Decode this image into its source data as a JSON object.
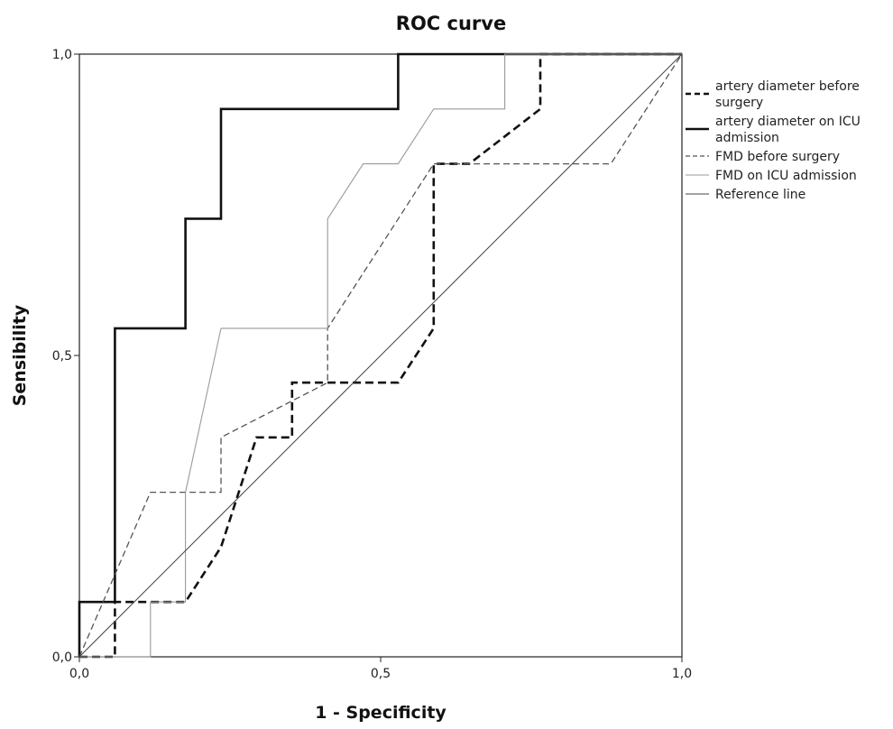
{
  "chart_data": {
    "type": "line",
    "title": "ROC curve",
    "xlabel": "1 - Specificity",
    "ylabel": "Sensibility",
    "xlim": [
      0,
      1
    ],
    "ylim": [
      0,
      1
    ],
    "xticks": [
      0,
      0.5,
      1
    ],
    "yticks": [
      0,
      0.5,
      1
    ],
    "xtick_labels": [
      "0,0",
      "0,5",
      "1,0"
    ],
    "ytick_labels": [
      "0,0",
      "0,5",
      "1,0"
    ],
    "grid": false,
    "legend_position": "right",
    "series": [
      {
        "name": "artery diameter before surgery",
        "legend_lines": [
          "artery diameter before",
          "surgery"
        ],
        "style": "thick-dashed",
        "color": "#111111",
        "x": [
          0,
          0.059,
          0.059,
          0.176,
          0.235,
          0.294,
          0.353,
          0.353,
          0.529,
          0.588,
          0.588,
          0.647,
          0.765,
          0.765,
          1.0
        ],
        "y": [
          0,
          0,
          0.091,
          0.091,
          0.182,
          0.364,
          0.364,
          0.455,
          0.455,
          0.545,
          0.818,
          0.818,
          0.909,
          1.0,
          1.0
        ]
      },
      {
        "name": "artery diameter on ICU admission",
        "legend_lines": [
          "artery diameter on ICU",
          "admission"
        ],
        "style": "thick-solid",
        "color": "#111111",
        "x": [
          0,
          0,
          0.059,
          0.059,
          0.176,
          0.176,
          0.235,
          0.235,
          0.529,
          0.529,
          1.0
        ],
        "y": [
          0,
          0.091,
          0.091,
          0.545,
          0.545,
          0.727,
          0.727,
          0.909,
          0.909,
          1.0,
          1.0
        ]
      },
      {
        "name": "FMD before surgery",
        "legend_lines": [
          "FMD before surgery"
        ],
        "style": "thin-dashed",
        "color": "#555555",
        "x": [
          0,
          0.118,
          0.118,
          0.235,
          0.235,
          0.412,
          0.412,
          0.588,
          0.882,
          1.0
        ],
        "y": [
          0,
          0.273,
          0.273,
          0.273,
          0.364,
          0.455,
          0.545,
          0.818,
          0.818,
          1.0
        ]
      },
      {
        "name": "FMD on ICU admission",
        "legend_lines": [
          "FMD on ICU admission"
        ],
        "style": "thin-solid",
        "color": "#9a9a9a",
        "x": [
          0,
          0.118,
          0.118,
          0.176,
          0.176,
          0.235,
          0.412,
          0.412,
          0.471,
          0.529,
          0.588,
          0.706,
          0.706,
          1.0
        ],
        "y": [
          0,
          0,
          0.091,
          0.091,
          0.273,
          0.545,
          0.545,
          0.727,
          0.818,
          0.818,
          0.909,
          0.909,
          1.0,
          1.0
        ]
      },
      {
        "name": "Reference line",
        "legend_lines": [
          "Reference line"
        ],
        "style": "reference",
        "color": "#444444",
        "x": [
          0,
          1
        ],
        "y": [
          0,
          1
        ]
      }
    ]
  }
}
